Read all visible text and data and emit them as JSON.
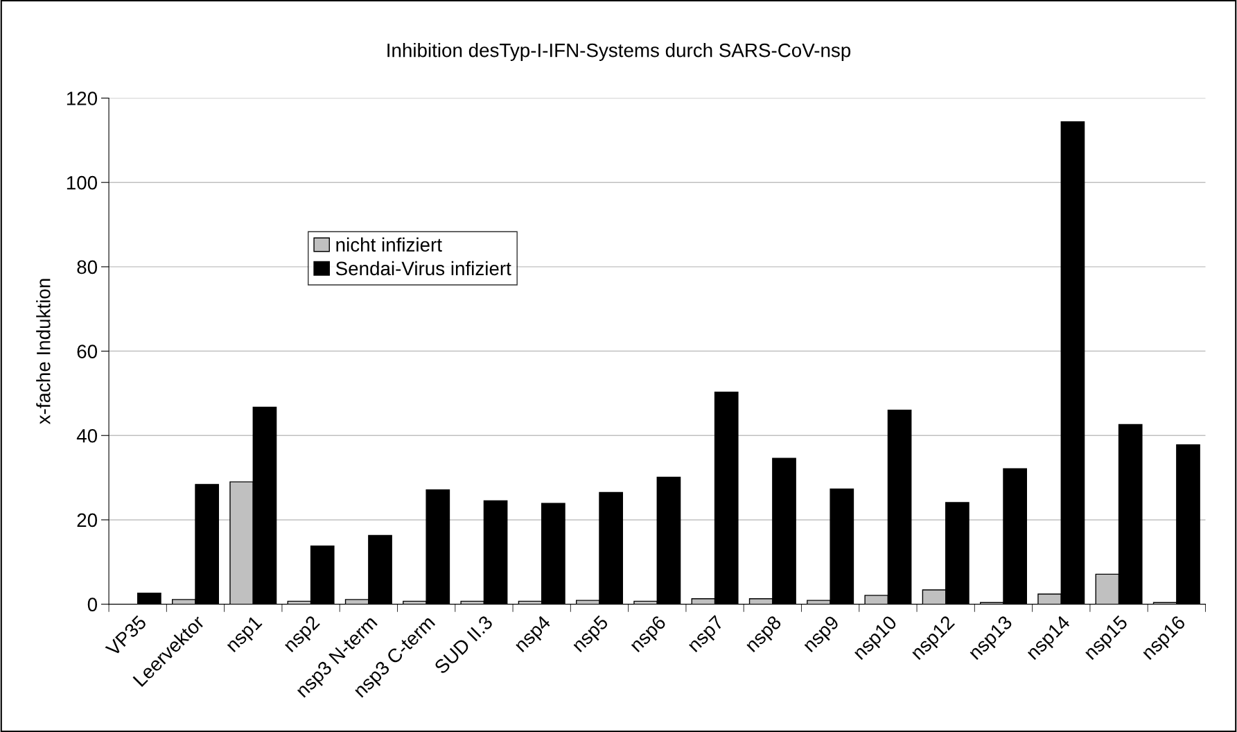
{
  "chart_data": {
    "type": "bar",
    "title": "Inhibition desTyp-I-IFN-Systems durch SARS-CoV-nsp",
    "ylabel": "x-fache Induktion",
    "categories": [
      "VP35",
      "Leervektor",
      "nsp1",
      "nsp2",
      "nsp3 N-term",
      "nsp3 C-term",
      "SUD II.3",
      "nsp4",
      "nsp5",
      "nsp6",
      "nsp7",
      "nsp8",
      "nsp9",
      "nsp10",
      "nsp12",
      "nsp13",
      "nsp14",
      "nsp15",
      "nsp16"
    ],
    "series": [
      {
        "name": "nicht infiziert",
        "color": "#c0c0c0",
        "values": [
          null,
          1.1,
          29.0,
          0.7,
          1.1,
          0.7,
          0.7,
          0.7,
          0.9,
          0.7,
          1.3,
          1.3,
          0.9,
          2.1,
          3.4,
          0.4,
          2.4,
          7.1,
          0.4
        ]
      },
      {
        "name": "Sendai-Virus infiziert",
        "color": "#000000",
        "values": [
          2.6,
          28.4,
          46.7,
          13.8,
          16.3,
          27.1,
          24.5,
          23.9,
          26.5,
          30.1,
          50.3,
          34.6,
          27.3,
          46.0,
          24.1,
          32.1,
          114.4,
          42.6,
          37.8
        ]
      }
    ],
    "ylim": [
      0,
      120
    ],
    "yticks": [
      0,
      20,
      40,
      60,
      80,
      100,
      120
    ],
    "grid": "y",
    "legend": "top left"
  }
}
